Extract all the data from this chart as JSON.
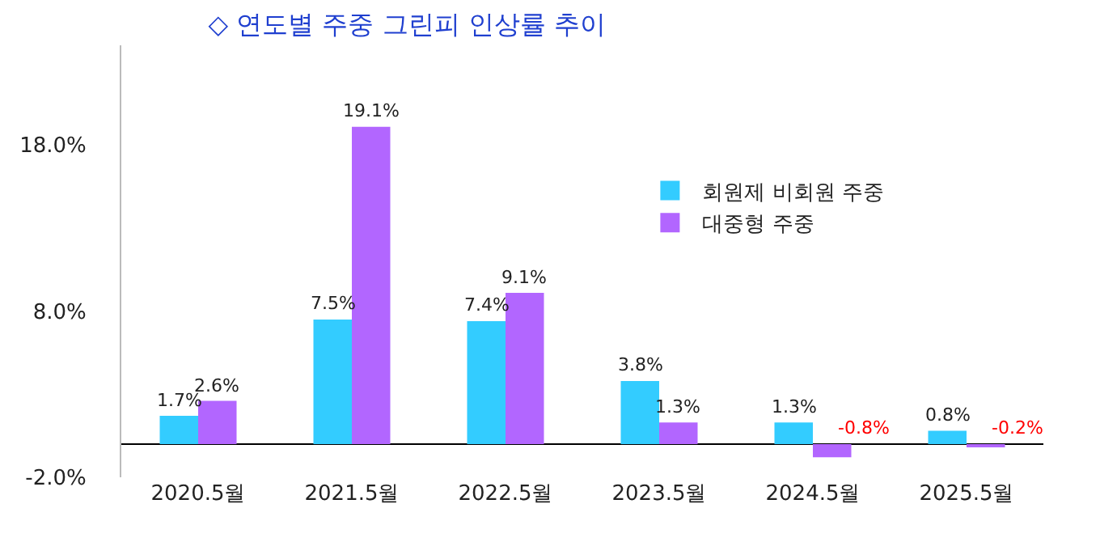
{
  "chart_data": {
    "type": "bar",
    "title": "◇ 연도별 주중 그린피 인상률 추이",
    "categories": [
      "2020.5월",
      "2021.5월",
      "2022.5월",
      "2023.5월",
      "2024.5월",
      "2025.5월"
    ],
    "series": [
      {
        "name": "회원제 비회원 주중",
        "color": "#33ccff",
        "values": [
          1.7,
          7.5,
          7.4,
          3.8,
          1.3,
          0.8
        ],
        "value_labels": [
          "1.7%",
          "7.5%",
          "7.4%",
          "3.8%",
          "1.3%",
          "0.8%"
        ]
      },
      {
        "name": "대중형 주중",
        "color": "#b266ff",
        "values": [
          2.6,
          19.1,
          9.1,
          1.3,
          -0.8,
          -0.2
        ],
        "value_labels": [
          "2.6%",
          "19.1%",
          "9.1%",
          "1.3%",
          "-0.8%",
          "-0.2%"
        ]
      }
    ],
    "ylim": [
      -2,
      24
    ],
    "yticks": [
      {
        "value": -2,
        "label": "-2.0%"
      },
      {
        "value": 8,
        "label": "8.0%"
      },
      {
        "value": 18,
        "label": "18.0%"
      }
    ],
    "grid": false,
    "legend": "top right"
  }
}
